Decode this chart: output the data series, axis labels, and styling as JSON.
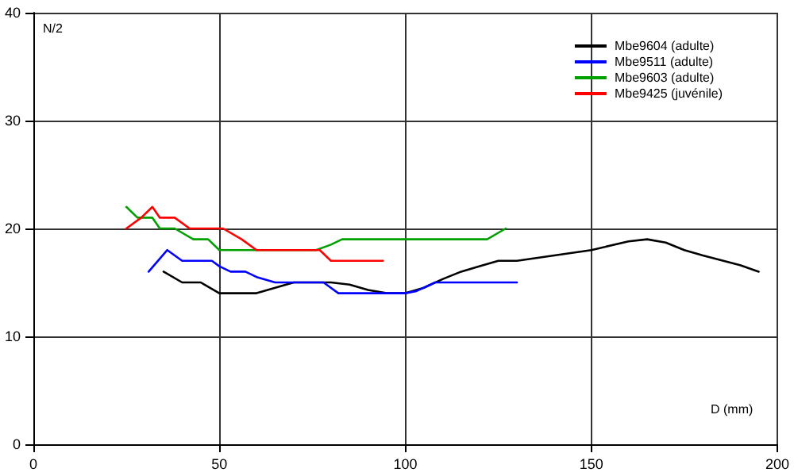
{
  "chart_data": {
    "type": "line",
    "xlabel": "D (mm)",
    "ylabel": "N/2",
    "xlim": [
      0,
      200
    ],
    "xticks": [
      0,
      50,
      100,
      150,
      200
    ],
    "ylim": [
      0,
      40
    ],
    "yticks": [
      0,
      10,
      20,
      30,
      40
    ],
    "grid": true,
    "legend": "top right",
    "marker": "none",
    "line_style": "solid",
    "series": [
      {
        "name": "Mbe9604 (adulte)",
        "color": "#000000",
        "x": [
          35,
          40,
          45,
          50,
          55,
          60,
          65,
          70,
          80,
          85,
          90,
          95,
          100,
          105,
          110,
          115,
          120,
          125,
          130,
          140,
          150,
          160,
          165,
          170,
          175,
          180,
          190,
          195
        ],
        "values": [
          16,
          15,
          15,
          14,
          14,
          14,
          14.5,
          15,
          15,
          14.8,
          14.3,
          14,
          14,
          14.5,
          15.3,
          16,
          16.5,
          17,
          17,
          17.5,
          18,
          18.8,
          19,
          18.7,
          18,
          17.5,
          16.6,
          16
        ]
      },
      {
        "name": "Mbe9511 (adulte)",
        "color": "#0000ff",
        "x": [
          31,
          36,
          40,
          45,
          48,
          50,
          53,
          57,
          60,
          65,
          70,
          75,
          78,
          82,
          90,
          100,
          103,
          108,
          110,
          120,
          130
        ],
        "values": [
          16,
          18,
          17,
          17,
          17,
          16.5,
          16,
          16,
          15.5,
          15,
          15,
          15,
          15,
          14,
          14,
          14,
          14.2,
          15,
          15,
          15,
          15
        ]
      },
      {
        "name": "Mbe9603 (adulte)",
        "color": "#00a000",
        "x": [
          25,
          28,
          32,
          34,
          38,
          43,
          47,
          50,
          55,
          60,
          76,
          80,
          83,
          90,
          100,
          110,
          120,
          122,
          127
        ],
        "values": [
          22,
          21,
          21,
          20,
          20,
          19,
          19,
          18,
          18,
          18,
          18,
          18.5,
          19,
          19,
          19,
          19,
          19,
          19,
          20
        ]
      },
      {
        "name": "Mbe9425 (juvénile)",
        "color": "#ff0000",
        "x": [
          25,
          29,
          32,
          34,
          38,
          42,
          49,
          51,
          56,
          60,
          65,
          70,
          75,
          77,
          80,
          85,
          90,
          94
        ],
        "values": [
          20,
          21,
          22,
          21,
          21,
          20,
          20,
          20,
          19,
          18,
          18,
          18,
          18,
          18,
          17,
          17,
          17,
          17
        ]
      }
    ]
  }
}
